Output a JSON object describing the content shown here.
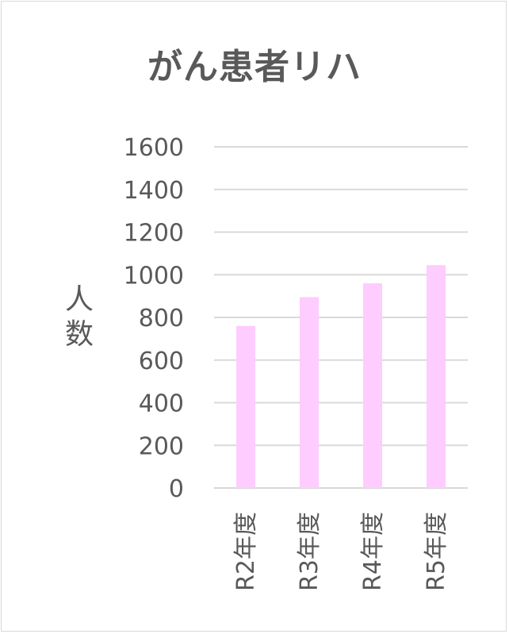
{
  "chart_data": {
    "type": "bar",
    "title": "がん患者リハ",
    "ylabel": "人数",
    "xlabel": "",
    "categories": [
      "R2年度",
      "R3年度",
      "R4年度",
      "R5年度"
    ],
    "values": [
      760,
      895,
      960,
      1045
    ],
    "ylim": [
      0,
      1600
    ],
    "yticks": [
      0,
      200,
      400,
      600,
      800,
      1000,
      1200,
      1400,
      1600
    ],
    "grid": true,
    "legend": "none",
    "bar_color": "#ffccff",
    "grid_color": "#d9d9d9",
    "text_color": "#595959"
  }
}
